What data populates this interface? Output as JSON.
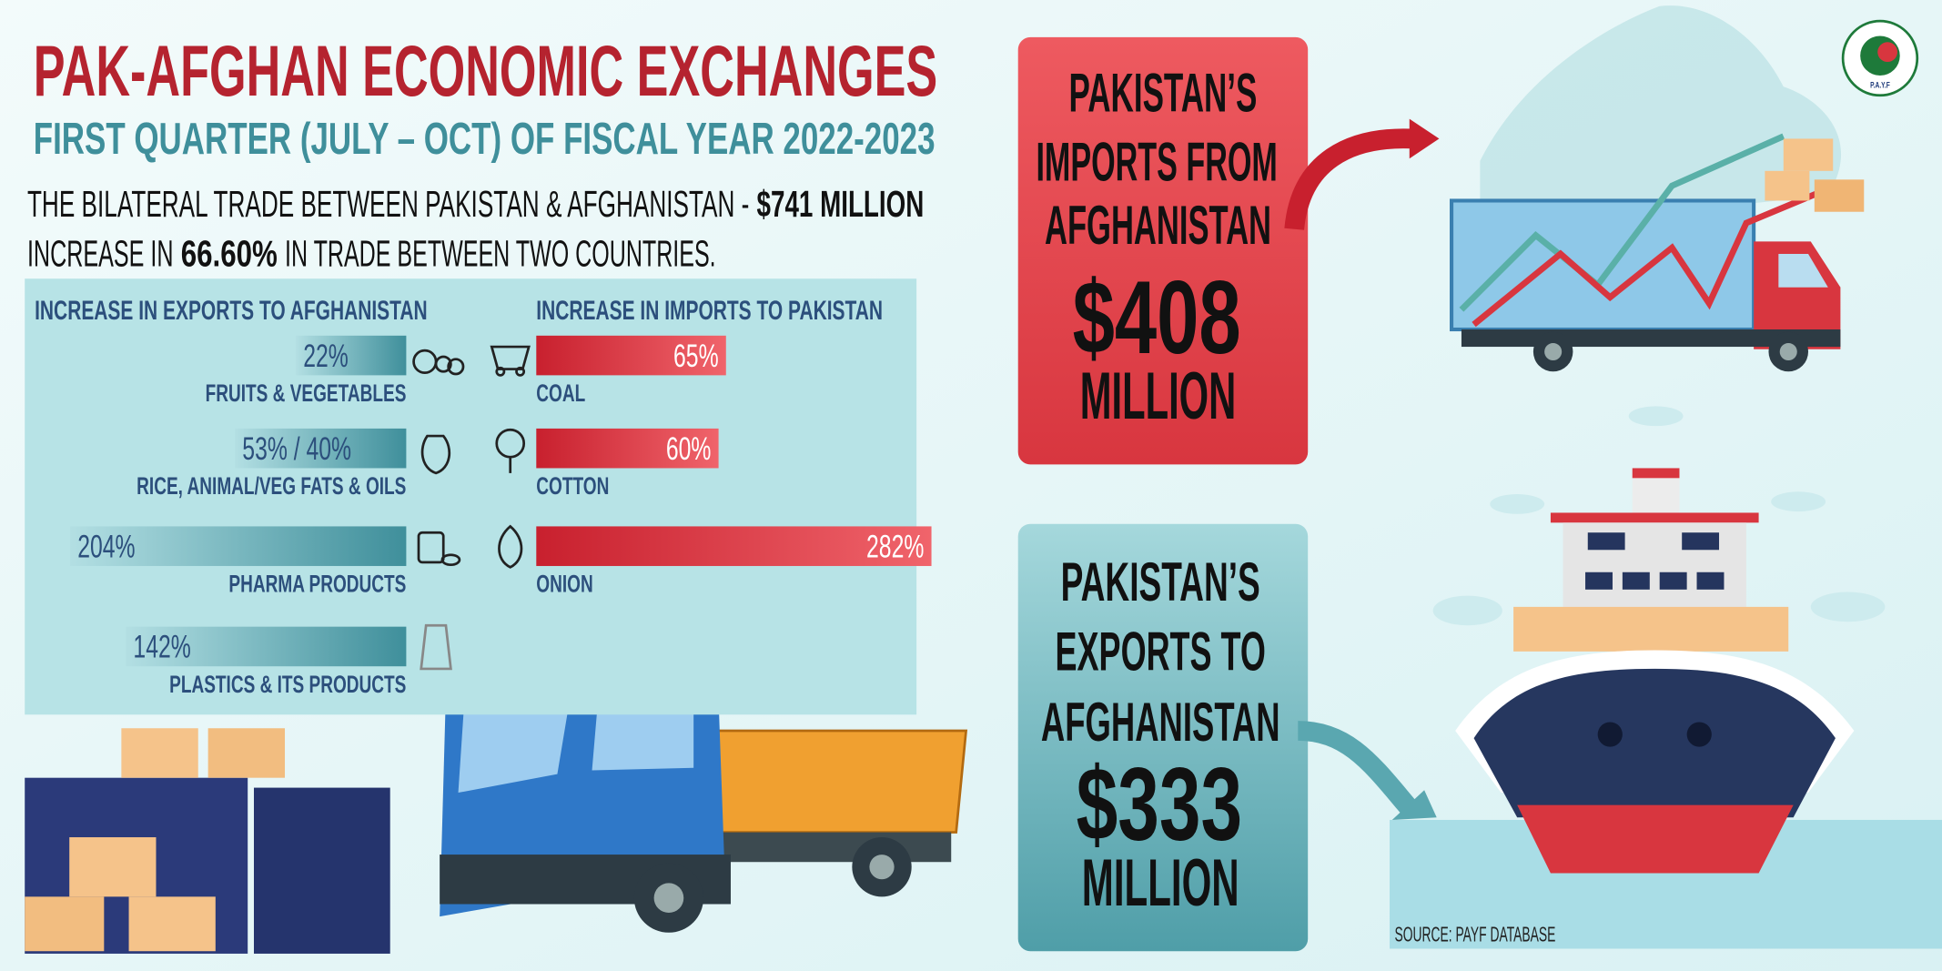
{
  "header": {
    "title": "PAK-AFGHAN ECONOMIC EXCHANGES",
    "subtitle": "FIRST QUARTER (JULY – OCT) OF FISCAL YEAR 2022-2023"
  },
  "summary": {
    "line1": "THE BILATERAL TRADE BETWEEN PAKISTAN & AFGHANISTAN -",
    "total": "$741 MILLION",
    "line2_start": "INCREASE IN",
    "increase": "66.60%",
    "line2_end": "IN TRADE BETWEEN TWO COUNTRIES."
  },
  "chart_data": [
    {
      "type": "bar",
      "title": "INCREASE IN EXPORTS TO AFGHANISTAN",
      "categories": [
        "FRUITS & VEGETABLES",
        "RICE, ANIMAL/VEG FATS & OILS",
        "PHARMA PRODUCTS",
        "PLASTICS & ITS PRODUCTS"
      ],
      "values": [
        22,
        53,
        204,
        142
      ],
      "value_labels": [
        "22%",
        "53% / 40%",
        "204%",
        "142%"
      ],
      "color": "#4f9ea8"
    },
    {
      "type": "bar",
      "title": "INCREASE IN IMPORTS TO PAKISTAN",
      "categories": [
        "COAL",
        "COTTON",
        "ONION"
      ],
      "values": [
        65,
        60,
        282
      ],
      "value_labels": [
        "65%",
        "60%",
        "282%"
      ],
      "color": "#d3343f"
    }
  ],
  "imports_box": {
    "lines": [
      "PAKISTAN’S",
      "IMPORTS FROM",
      "AFGHANISTAN"
    ],
    "amount": "$408",
    "unit": "MILLION"
  },
  "exports_box": {
    "lines": [
      "PAKISTAN’S",
      "EXPORTS TO",
      "AFGHANISTAN"
    ],
    "amount": "$333",
    "unit": "MILLION"
  },
  "logo": {
    "initials": "P.A.Y.F"
  },
  "source": "SOURCE: PAYF DATABASE"
}
